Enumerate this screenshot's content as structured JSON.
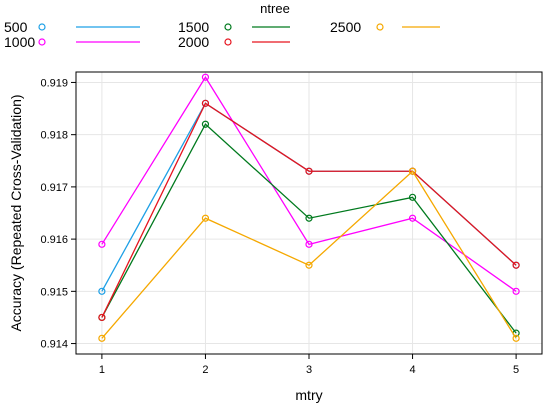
{
  "chart_data": {
    "type": "line",
    "xlabel": "mtry",
    "ylabel": "Accuracy (Repeated Cross-Validation)",
    "legend_title": "ntree",
    "legend_placement": "top",
    "grid": true,
    "x": [
      1,
      2,
      3,
      4,
      5
    ],
    "xlim": [
      0.75,
      5.25
    ],
    "ylim": [
      0.9138,
      0.9192
    ],
    "xticks": [
      "1",
      "2",
      "3",
      "4",
      "5"
    ],
    "yticks": [
      "0.914",
      "0.915",
      "0.916",
      "0.917",
      "0.918",
      "0.919"
    ],
    "series": [
      {
        "name": "500",
        "color": "#1ea0e6",
        "values": [
          0.915,
          0.9186,
          0.9173,
          0.9173,
          0.9155
        ]
      },
      {
        "name": "1000",
        "color": "#ff00ff",
        "values": [
          0.9159,
          0.9191,
          0.9159,
          0.9164,
          0.915
        ]
      },
      {
        "name": "1500",
        "color": "#007a1e",
        "values": [
          0.9145,
          0.9182,
          0.9164,
          0.9168,
          0.9142
        ]
      },
      {
        "name": "2000",
        "color": "#e6141e",
        "values": [
          0.9145,
          0.9186,
          0.9173,
          0.9173,
          0.9155
        ]
      },
      {
        "name": "2500",
        "color": "#f5a800",
        "values": [
          0.9141,
          0.9164,
          0.9155,
          0.9173,
          0.9141
        ]
      }
    ]
  }
}
